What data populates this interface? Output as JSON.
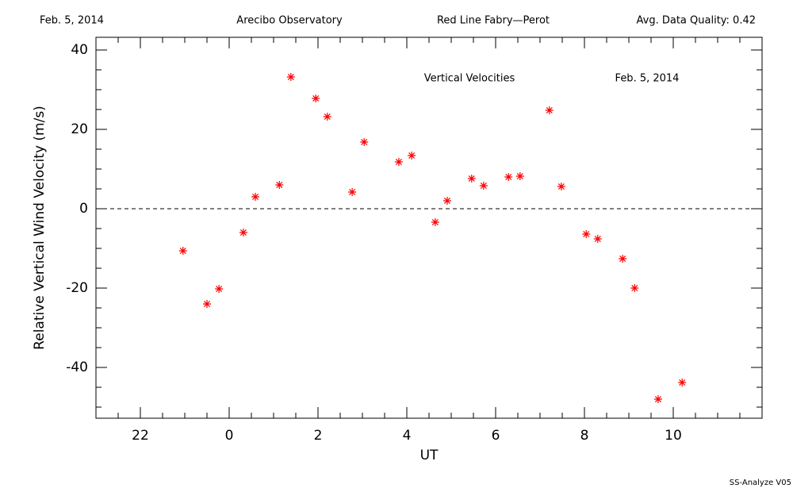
{
  "header": {
    "date": "Feb. 5, 2014",
    "site": "Arecibo Observatory",
    "instrument": "Red Line Fabry—Perot",
    "quality": "Avg. Data Quality: 0.42"
  },
  "footer": "SS-Analyze V05",
  "chart_data": {
    "type": "scatter",
    "title": "Vertical Velocities",
    "subtitle": "Feb. 5, 2014",
    "x_label": "UT",
    "y_label": "Relative Vertical Wind Velocity (m/s)",
    "marker": "asterisk",
    "color": "#ff0000",
    "hline": 0,
    "xlim": [
      -3,
      12
    ],
    "ylim": [
      -52.8,
      43.2
    ],
    "xticks": [
      {
        "value": -2,
        "label": "22"
      },
      0,
      2,
      4,
      6,
      8,
      10
    ],
    "yticks": [
      -40,
      -20,
      0,
      20,
      40
    ],
    "xminorticks": [
      -2.5,
      -1.5,
      -1,
      -0.5,
      0.5,
      1,
      1.5,
      2.5,
      3,
      3.5,
      4.5,
      5,
      5.5,
      6.5,
      7,
      7.5,
      8.5,
      9,
      9.5,
      10.5,
      11,
      11.5
    ],
    "yminorticks": [
      -50,
      -45,
      -35,
      -30,
      -25,
      -15,
      -10,
      -5,
      5,
      10,
      15,
      25,
      30,
      35
    ],
    "x": [
      -1.04,
      -0.5,
      -0.23,
      0.32,
      0.59,
      1.13,
      1.39,
      1.95,
      2.21,
      2.77,
      3.04,
      3.82,
      4.11,
      4.64,
      4.91,
      5.46,
      5.73,
      6.29,
      6.55,
      7.21,
      7.48,
      8.04,
      8.3,
      8.86,
      9.13,
      9.66,
      10.2
    ],
    "values": [
      -10.6,
      -24,
      -20.2,
      -6,
      3,
      6,
      33.2,
      27.8,
      23.2,
      4.2,
      16.8,
      11.8,
      13.4,
      -3.4,
      2,
      7.6,
      5.8,
      8,
      8.2,
      24.8,
      5.6,
      -6.4,
      -7.6,
      -12.6,
      -20,
      -48,
      -43.8
    ]
  }
}
